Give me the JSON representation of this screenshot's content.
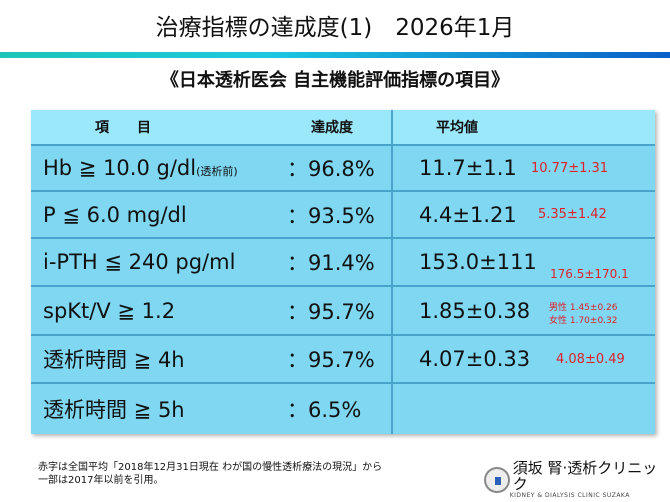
{
  "title": "治療指標の達成度(1)　2026年1月",
  "subtitle": "《日本透析医会 自主機能評価指標の項目》",
  "headers": {
    "item": "項　　目",
    "achievement": "達成度",
    "mean": "平均値"
  },
  "rows": [
    {
      "item": "Hb ≧ 10.0 g/dl",
      "note": "(透析前)",
      "rate": "：96.8%",
      "mean": "11.7±1.1",
      "national": "10.77±1.31"
    },
    {
      "item": "P ≦ 6.0 mg/dl",
      "rate": "：93.5%",
      "mean": "4.4±1.21",
      "national": "5.35±1.42"
    },
    {
      "item": "i-PTH ≦ 240 pg/ml",
      "rate": "：91.4%",
      "mean": "153.0±111",
      "national": "176.5±170.1"
    },
    {
      "item": "spKt/V ≧ 1.2",
      "rate": "：95.7%",
      "mean": "1.85±0.38",
      "national_male": "男性 1.45±0.26",
      "national_female": "女性 1.70±0.32"
    },
    {
      "item": "透析時間 ≧ 4h",
      "rate": "：95.7%",
      "mean": "4.07±0.33",
      "national": "4.08±0.49"
    },
    {
      "item": "透析時間 ≧ 5h",
      "rate": "：6.5%",
      "mean": ""
    }
  ],
  "footnote": [
    "赤字は全国平均「2018年12月31日現在 わが国の慢性透析療法の現況」から",
    "一部は2017年以前を引用。"
  ],
  "logo": {
    "name": "須坂 腎·透析クリニック",
    "en": "KIDNEY & DIALYSIS CLINIC SUZAKA"
  }
}
